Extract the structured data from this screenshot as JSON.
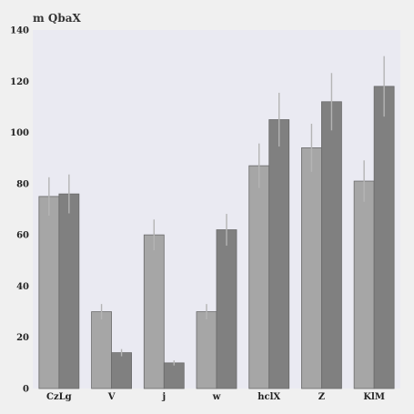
{
  "chart_data": {
    "type": "bar",
    "title": "",
    "xlabel": "",
    "ylabel": "m QbaX",
    "ylim": [
      0,
      140
    ],
    "yticks": [
      0,
      20,
      40,
      60,
      80,
      100,
      120,
      140
    ],
    "grid": false,
    "categories": [
      "CzLg",
      "V",
      "j",
      "w",
      "hclX",
      "Z",
      "KlM"
    ],
    "series": [
      {
        "values": [
          75,
          30,
          60,
          30,
          87,
          94,
          81
        ],
        "errors": [
          7.5,
          3,
          6,
          3,
          8.7,
          9.4,
          8.1
        ],
        "color": "#a6a6a6"
      },
      {
        "values": [
          76,
          14,
          10,
          62,
          105,
          112,
          118
        ],
        "errors": [
          7.6,
          1.4,
          1,
          6.2,
          10.5,
          11.2,
          11.8
        ],
        "color": "#808080"
      }
    ],
    "plot_background": "#eaeaf2",
    "page_background": "#f0f0f0",
    "error_bar_color": "#b4b4b4"
  }
}
